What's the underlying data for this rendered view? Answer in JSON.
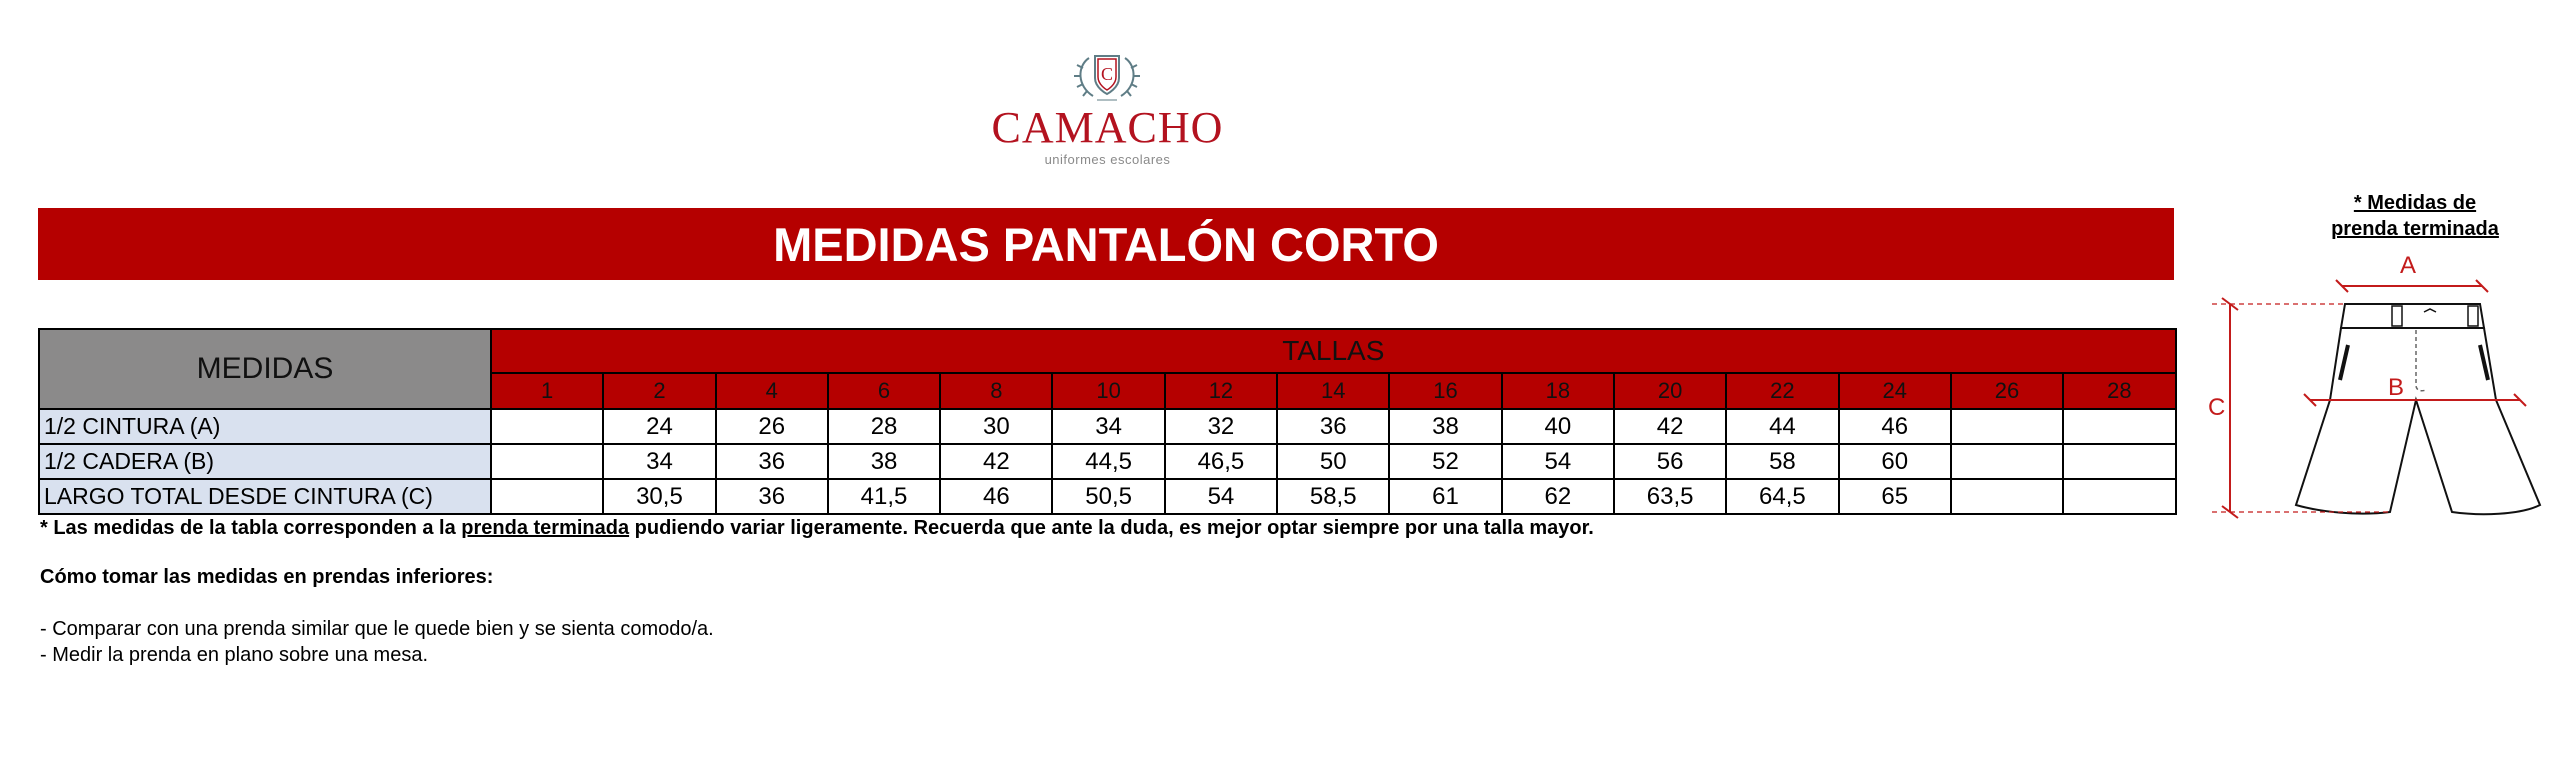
{
  "logo": {
    "brand": "CAMACHO",
    "tagline": "uniformes escolares",
    "crest_letter": "C",
    "colors": {
      "brand": "#b3121f",
      "crest": "#5f7d86"
    }
  },
  "banner": {
    "title": "MEDIDAS PANTALÓN CORTO"
  },
  "table": {
    "measures_header": "MEDIDAS",
    "sizes_header": "TALLAS",
    "sizes": [
      "1",
      "2",
      "4",
      "6",
      "8",
      "10",
      "12",
      "14",
      "16",
      "18",
      "20",
      "22",
      "24",
      "26",
      "28"
    ],
    "rows": [
      {
        "label": "1/2 CINTURA (A)",
        "values": [
          "",
          "24",
          "26",
          "28",
          "30",
          "34",
          "32",
          "36",
          "38",
          "40",
          "42",
          "44",
          "46",
          "",
          ""
        ]
      },
      {
        "label": "1/2 CADERA (B)",
        "values": [
          "",
          "34",
          "36",
          "38",
          "42",
          "44,5",
          "46,5",
          "50",
          "52",
          "54",
          "56",
          "58",
          "60",
          "",
          ""
        ]
      },
      {
        "label": "LARGO TOTAL DESDE CINTURA (C)",
        "values": [
          "",
          "30,5",
          "36",
          "41,5",
          "46",
          "50,5",
          "54",
          "58,5",
          "61",
          "62",
          "63,5",
          "64,5",
          "65",
          "",
          ""
        ]
      }
    ],
    "colors": {
      "header_red": "#b50000",
      "measures_grey": "#8b8a8a",
      "label_blue": "#d9e1ef"
    }
  },
  "notes": {
    "disclaimer_pre": "* Las medidas de la tabla corresponden a la ",
    "disclaimer_underlined": "prenda terminada",
    "disclaimer_post": " pudiendo variar ligeramente. Recuerda que ante la duda, es mejor optar siempre por una talla mayor.",
    "how_to_title": "Cómo tomar las medidas en prendas inferiores:",
    "tip1": "- Comparar con una prenda similar que le quede bien y se sienta comodo/a.",
    "tip2": "- Medir la prenda en plano sobre una mesa."
  },
  "diagram": {
    "title_line1": "* Medidas de",
    "title_line2": "prenda terminada",
    "label_a": "A",
    "label_b": "B",
    "label_c": "C",
    "accent_color": "#c31b1b"
  }
}
